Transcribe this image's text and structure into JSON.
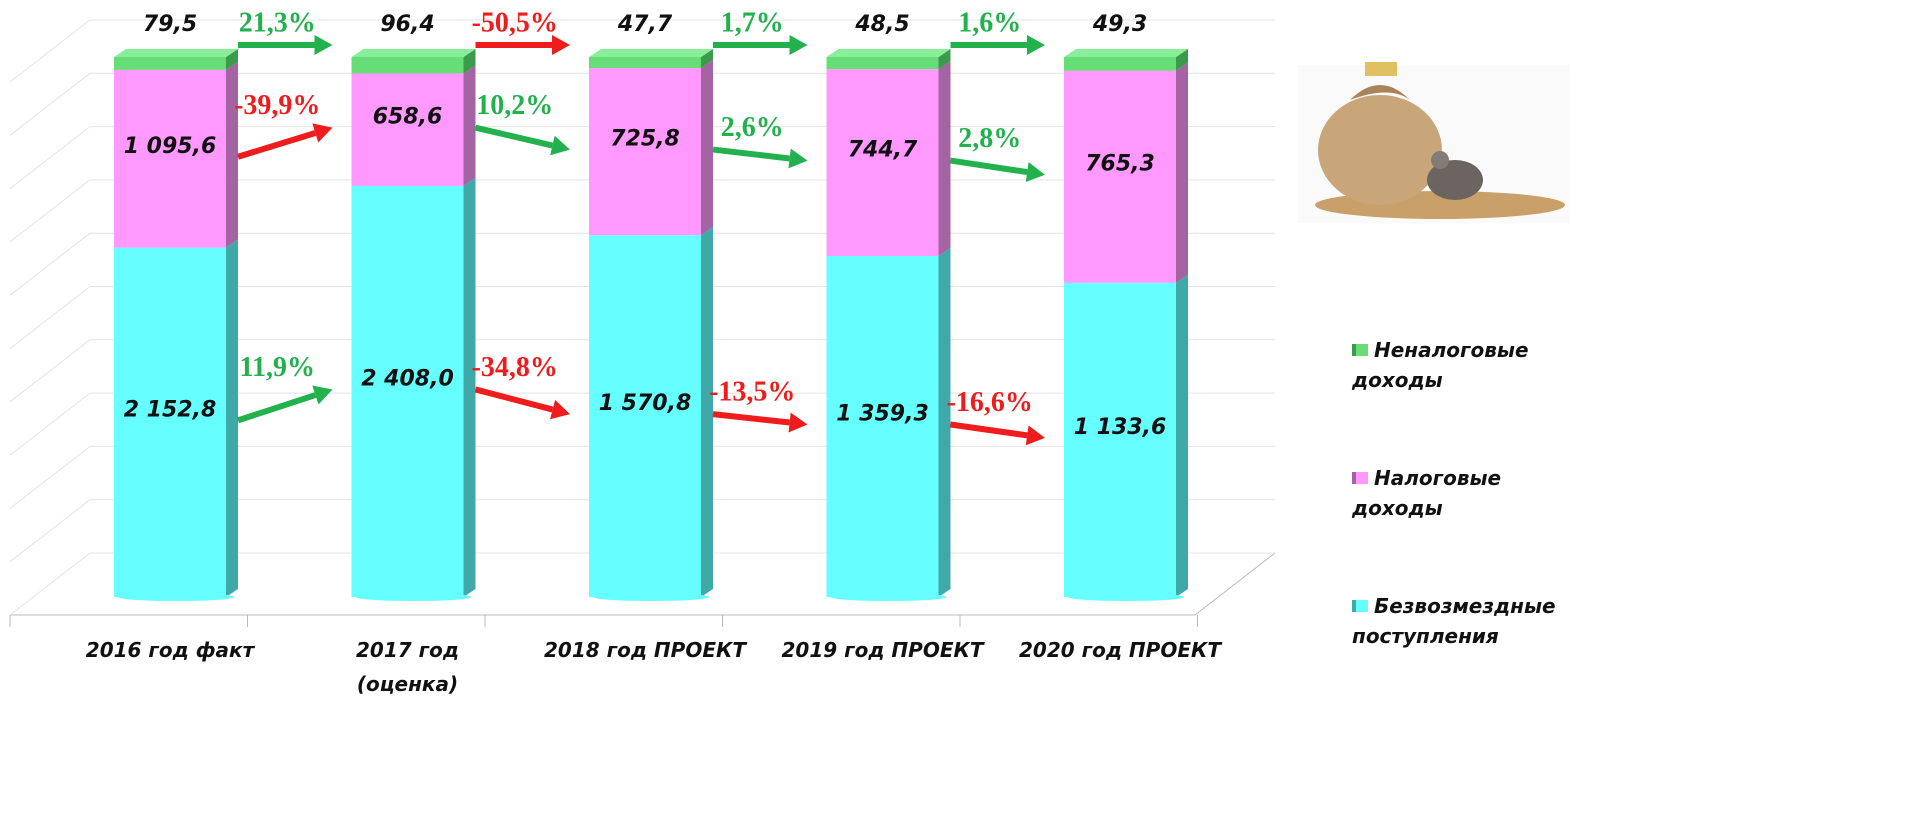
{
  "chart_data": {
    "type": "stacked_percent_bar_3d",
    "categories": [
      "2016 год факт",
      "2017 год\n(оценка)",
      "2018 год ПРОЕКТ",
      "2019 год ПРОЕКТ",
      "2020 год ПРОЕКТ"
    ],
    "series": [
      {
        "name": "Безвозмездные поступления",
        "color": "#66ffff",
        "side_color": "#3fa8a8",
        "values": [
          2152.8,
          2408.0,
          1570.8,
          1359.3,
          1133.6
        ],
        "value_labels": [
          "2 152,8",
          "2 408,0",
          "1 570,8",
          "1 359,3",
          "1 133,6"
        ],
        "changes": [
          11.9,
          -34.8,
          -13.5,
          -16.6
        ],
        "change_labels": [
          "11,9%",
          "-34,8%",
          "-13,5%",
          "-16,6%"
        ]
      },
      {
        "name": "Налоговые доходы",
        "color": "#ff99ff",
        "side_color": "#a463a3",
        "values": [
          1095.6,
          658.6,
          725.8,
          744.7,
          765.3
        ],
        "value_labels": [
          "1 095,6",
          "658,6",
          "725,8",
          "744,7",
          "765,3"
        ],
        "changes": [
          -39.9,
          10.2,
          2.6,
          2.8
        ],
        "change_labels": [
          "-39,9%",
          "10,2%",
          "2,6%",
          "2,8%"
        ]
      },
      {
        "name": "Неналоговые доходы",
        "color": "#66dd77",
        "side_color": "#3b9a4b",
        "values": [
          79.5,
          96.4,
          47.7,
          48.5,
          49.3
        ],
        "value_labels": [
          "79,5",
          "96,4",
          "47,7",
          "48,5",
          "49,3"
        ],
        "changes": [
          21.3,
          -50.5,
          1.7,
          1.6
        ],
        "change_labels": [
          "21,3%",
          "-50,5%",
          "1,7%",
          "1,6%"
        ]
      }
    ],
    "ylim": [
      0,
      100
    ],
    "yticks": [
      0,
      10,
      20,
      30,
      40,
      50,
      60,
      70,
      80,
      90,
      100
    ],
    "grid": true,
    "increase_color": "#22b14c",
    "decrease_color": "#ee1c1c",
    "legend": "right"
  }
}
